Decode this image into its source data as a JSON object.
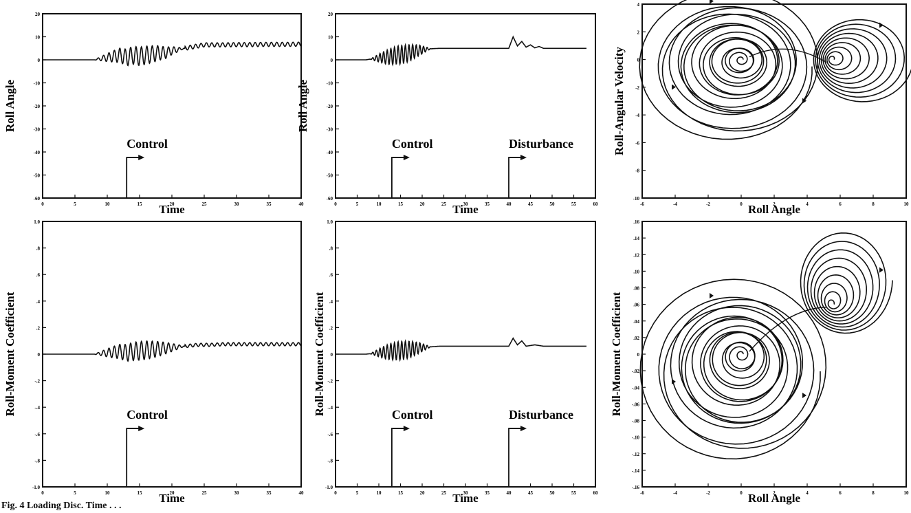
{
  "caption": "Fig. 4  Loading Disc. Time . . .",
  "chart_data": [
    {
      "type": "line",
      "panel": "top-left",
      "xlabel": "Time",
      "ylabel": "Roll Angle",
      "xlim": [
        0,
        40
      ],
      "ylim": [
        -60,
        20
      ],
      "xticks": [
        "0",
        "5",
        "10",
        "15",
        "20",
        "25",
        "30",
        "35",
        "40"
      ],
      "yticks": [
        "20",
        "10",
        "0",
        "-10",
        "-20",
        "-30",
        "-40",
        "-50",
        "-60"
      ],
      "annotations": [
        {
          "text": "Control",
          "x": 13
        }
      ],
      "series": [
        {
          "x": [
            0,
            8,
            9,
            10,
            11,
            12,
            13,
            14,
            15,
            16,
            17,
            18,
            19,
            20,
            21,
            22,
            23,
            24,
            25,
            26,
            28,
            30,
            32,
            34,
            36,
            38,
            40
          ],
          "y": [
            0,
            0,
            0.5,
            1,
            1.5,
            2,
            1,
            2,
            1.5,
            2,
            2.5,
            3,
            3,
            4,
            4.5,
            5,
            5.5,
            6,
            6.5,
            6.5,
            6.5,
            6.6,
            6.6,
            6.7,
            6.7,
            6.7,
            6.8
          ]
        }
      ]
    },
    {
      "type": "line",
      "panel": "top-middle",
      "xlabel": "Time",
      "ylabel": "Roll Angle",
      "xlim": [
        0,
        60
      ],
      "ylim": [
        -60,
        20
      ],
      "xticks": [
        "0",
        "5",
        "10",
        "15",
        "20",
        "25",
        "30",
        "35",
        "40",
        "45",
        "50",
        "55",
        "60"
      ],
      "yticks": [
        "20",
        "10",
        "0",
        "-10",
        "-20",
        "-30",
        "-40",
        "-50",
        "-60"
      ],
      "annotations": [
        {
          "text": "Control",
          "x": 13
        },
        {
          "text": "Disturbance",
          "x": 40
        }
      ],
      "series": [
        {
          "x": [
            0,
            7,
            8,
            9,
            10,
            11,
            12,
            13,
            14,
            15,
            16,
            17,
            18,
            19,
            20,
            21,
            22,
            24,
            26,
            30,
            35,
            40,
            41,
            42,
            43,
            44,
            45,
            46,
            47,
            48,
            50,
            55,
            58
          ],
          "y": [
            0,
            0,
            0.3,
            0.5,
            0.8,
            1,
            1.2,
            1.5,
            2,
            2.2,
            2.5,
            3,
            3.5,
            4,
            4.3,
            4.6,
            4.8,
            5,
            5,
            5,
            5,
            5,
            10,
            6,
            8,
            5.5,
            6.5,
            5.2,
            5.8,
            5,
            5,
            5,
            5
          ]
        }
      ]
    },
    {
      "type": "line",
      "panel": "top-right",
      "xlabel": "Roll Angle",
      "ylabel": "Roll-Angular Velocity",
      "xlim": [
        -6,
        10
      ],
      "ylim": [
        -10,
        4
      ],
      "xticks": [
        "-6",
        "-4",
        "-2",
        "0",
        "2",
        "4",
        "6",
        "8",
        "10"
      ],
      "yticks": [
        "4",
        "2",
        "0",
        "-2",
        "-4",
        "-6",
        "-8",
        "-10"
      ],
      "series": [
        {
          "x": [
            0,
            5.5
          ],
          "y": [
            0,
            0
          ]
        }
      ]
    },
    {
      "type": "line",
      "panel": "bottom-left",
      "xlabel": "Time",
      "ylabel": "Roll-Moment Coefficient",
      "xlim": [
        0,
        40
      ],
      "ylim": [
        -1.0,
        1.0
      ],
      "xticks": [
        "0",
        "5",
        "10",
        "15",
        "20",
        "25",
        "30",
        "35",
        "40"
      ],
      "yticks": [
        "1.0",
        ".8",
        ".6",
        ".4",
        ".2",
        "0",
        "-.2",
        "-.4",
        "-.6",
        "-.8",
        "-1.0"
      ],
      "annotations": [
        {
          "text": "Control",
          "x": 13
        }
      ],
      "series": [
        {
          "x": [
            0,
            8,
            10,
            12,
            13,
            14,
            16,
            18,
            20,
            22,
            24,
            26,
            28,
            30,
            32,
            34,
            36,
            38,
            40
          ],
          "y": [
            0,
            0,
            0.01,
            0.02,
            0.01,
            0.02,
            0.03,
            0.04,
            0.05,
            0.06,
            0.07,
            0.07,
            0.075,
            0.075,
            0.075,
            0.075,
            0.075,
            0.075,
            0.075
          ]
        }
      ]
    },
    {
      "type": "line",
      "panel": "bottom-middle",
      "xlabel": "Time",
      "ylabel": "Roll-Moment Coefficient",
      "xlim": [
        0,
        60
      ],
      "ylim": [
        -1.0,
        1.0
      ],
      "xticks": [
        "0",
        "5",
        "10",
        "15",
        "20",
        "25",
        "30",
        "35",
        "40",
        "45",
        "50",
        "55",
        "60"
      ],
      "yticks": [
        "1.0",
        ".8",
        ".6",
        ".4",
        ".2",
        "0",
        "-.2",
        "-.4",
        "-.6",
        "-.8",
        "-1.0"
      ],
      "annotations": [
        {
          "text": "Control",
          "x": 13
        },
        {
          "text": "Disturbance",
          "x": 40
        }
      ],
      "series": [
        {
          "x": [
            0,
            7,
            10,
            13,
            16,
            20,
            24,
            28,
            32,
            36,
            40,
            41,
            42,
            43,
            44,
            46,
            48,
            52,
            56,
            58
          ],
          "y": [
            0,
            0,
            0.01,
            0.02,
            0.03,
            0.05,
            0.06,
            0.06,
            0.06,
            0.06,
            0.06,
            0.12,
            0.07,
            0.1,
            0.06,
            0.07,
            0.06,
            0.06,
            0.06,
            0.06
          ]
        }
      ]
    },
    {
      "type": "line",
      "panel": "bottom-right",
      "xlabel": "Roll Angle",
      "ylabel": "Roll-Moment Coefficient",
      "xlim": [
        -6,
        10
      ],
      "ylim": [
        -0.16,
        0.16
      ],
      "xticks": [
        "-6",
        "-4",
        "-2",
        "0",
        "2",
        "4",
        "6",
        "8",
        "10"
      ],
      "yticks": [
        ".16",
        ".14",
        ".12",
        ".10",
        ".08",
        ".06",
        ".04",
        ".02",
        "0",
        "-.02",
        "-.04",
        "-.06",
        "-.08",
        "-.10",
        "-.12",
        "-.14",
        "-.16"
      ],
      "series": [
        {
          "x": [
            0,
            5.5
          ],
          "y": [
            0,
            0.06
          ]
        }
      ]
    }
  ]
}
